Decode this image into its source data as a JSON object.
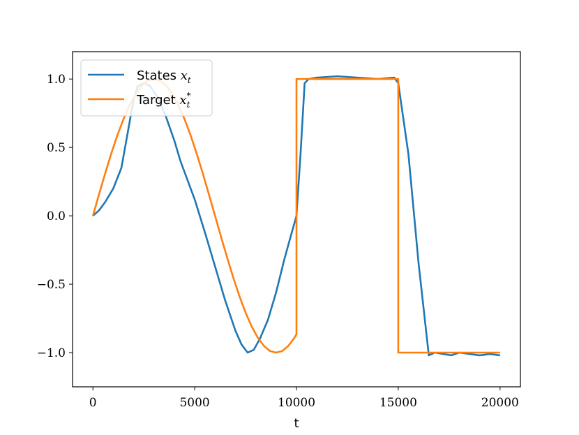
{
  "chart_data": {
    "type": "line",
    "title": "",
    "xlabel": "t",
    "ylabel": "",
    "xlim": [
      -1000,
      21000
    ],
    "ylim": [
      -1.25,
      1.2
    ],
    "x_ticks": [
      0,
      5000,
      10000,
      15000,
      20000
    ],
    "x_tick_labels": [
      "0",
      "5000",
      "10000",
      "15000",
      "20000"
    ],
    "y_ticks": [
      1.0,
      0.5,
      0.0,
      -0.5,
      -1.0
    ],
    "y_tick_labels": [
      "1.0",
      "0.5",
      "0.0",
      "−0.5",
      "−1.0"
    ],
    "legend_position": "top-left",
    "series": [
      {
        "name": "States",
        "legend_label": "States",
        "legend_math": "x",
        "legend_sub": "t",
        "legend_sup": "",
        "color": "#1f77b4",
        "x": [
          0,
          300,
          600,
          1000,
          1400,
          1700,
          2000,
          2200,
          2500,
          2800,
          3200,
          3600,
          4000,
          4300,
          4600,
          5000,
          5500,
          6000,
          6500,
          7000,
          7300,
          7600,
          7900,
          8200,
          8600,
          9000,
          9400,
          9700,
          10000,
          10200,
          10400,
          10600,
          11000,
          12000,
          13000,
          14000,
          14800,
          15000,
          15500,
          16000,
          16500,
          16800,
          17200,
          17600,
          18000,
          18500,
          19000,
          19500,
          20000
        ],
        "values": [
          0,
          0.04,
          0.1,
          0.2,
          0.35,
          0.6,
          0.85,
          0.95,
          0.97,
          0.95,
          0.86,
          0.72,
          0.55,
          0.4,
          0.28,
          0.12,
          -0.12,
          -0.37,
          -0.62,
          -0.84,
          -0.94,
          -1.0,
          -0.98,
          -0.9,
          -0.76,
          -0.56,
          -0.32,
          -0.16,
          0.0,
          0.45,
          0.97,
          1.0,
          1.01,
          1.02,
          1.01,
          1.0,
          1.01,
          0.97,
          0.45,
          -0.35,
          -1.02,
          -1.0,
          -1.01,
          -1.02,
          -1.0,
          -1.01,
          -1.02,
          -1.01,
          -1.02
        ]
      },
      {
        "name": "Target",
        "legend_label": "Target",
        "legend_math": "x",
        "legend_sub": "t",
        "legend_sup": "*",
        "color": "#ff7f0e",
        "x": [
          0,
          300,
          600,
          900,
          1200,
          1500,
          1800,
          2100,
          2400,
          2700,
          3000,
          3300,
          3600,
          3900,
          4200,
          4500,
          4800,
          5100,
          5400,
          5700,
          6000,
          6300,
          6600,
          6900,
          7200,
          7500,
          7800,
          8100,
          8400,
          8700,
          9000,
          9300,
          9600,
          9900,
          10000,
          10000,
          15000,
          15000,
          20000
        ],
        "values": [
          0,
          0.156,
          0.309,
          0.454,
          0.588,
          0.707,
          0.809,
          0.891,
          0.951,
          0.988,
          1.0,
          0.988,
          0.951,
          0.891,
          0.809,
          0.707,
          0.588,
          0.454,
          0.309,
          0.156,
          0.0,
          -0.156,
          -0.309,
          -0.454,
          -0.588,
          -0.707,
          -0.809,
          -0.891,
          -0.951,
          -0.988,
          -1.0,
          -0.988,
          -0.951,
          -0.891,
          -0.866,
          1.0,
          1.0,
          -1.0,
          -1.0
        ]
      }
    ]
  }
}
